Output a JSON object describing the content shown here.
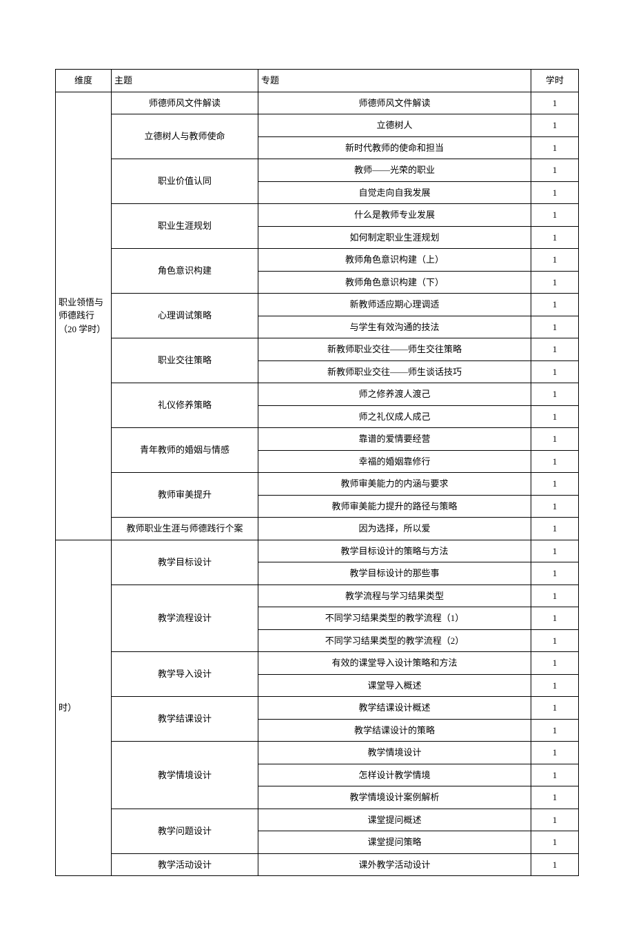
{
  "headers": {
    "dimension": "维度",
    "theme": "主题",
    "topic": "专题",
    "hours": "学时"
  },
  "sections": [
    {
      "dimension": "职业领悟与师德践行（20 学时）",
      "themes": [
        {
          "theme": "师德师风文件解读",
          "topics": [
            {
              "topic": "师德师风文件解读",
              "hours": "1"
            }
          ]
        },
        {
          "theme": "立德树人与教师使命",
          "topics": [
            {
              "topic": "立德树人",
              "hours": "1"
            },
            {
              "topic": "新时代教师的使命和担当",
              "hours": "1"
            }
          ]
        },
        {
          "theme": "职业价值认同",
          "topics": [
            {
              "topic": "教师――光荣的职业",
              "hours": "1"
            },
            {
              "topic": "自觉走向自我发展",
              "hours": "1"
            }
          ]
        },
        {
          "theme": "职业生涯规划",
          "topics": [
            {
              "topic": "什么是教师专业发展",
              "hours": "1"
            },
            {
              "topic": "如何制定职业生涯规划",
              "hours": "1"
            }
          ]
        },
        {
          "theme": "角色意识构建",
          "topics": [
            {
              "topic": "教师角色意识构建（上）",
              "hours": "1"
            },
            {
              "topic": "教师角色意识构建（下）",
              "hours": "1"
            }
          ]
        },
        {
          "theme": "心理调试策略",
          "topics": [
            {
              "topic": "新教师适应期心理调适",
              "hours": "1"
            },
            {
              "topic": "与学生有效沟通的技法",
              "hours": "1"
            }
          ]
        },
        {
          "theme": "职业交往策略",
          "topics": [
            {
              "topic": "新教师职业交往――师生交往策略",
              "hours": "1"
            },
            {
              "topic": "新教师职业交往——师生谈话技巧",
              "hours": "1"
            }
          ]
        },
        {
          "theme": "礼仪修养策略",
          "topics": [
            {
              "topic": "师之修养渡人渡己",
              "hours": "1"
            },
            {
              "topic": "师之礼仪成人成己",
              "hours": "1"
            }
          ]
        },
        {
          "theme": "青年教师的婚姻与情感",
          "topics": [
            {
              "topic": "靠谱的爱情要经营",
              "hours": "1"
            },
            {
              "topic": "幸福的婚姻靠修行",
              "hours": "1"
            }
          ]
        },
        {
          "theme": "教师审美提升",
          "topics": [
            {
              "topic": "教师审美能力的内涵与要求",
              "hours": "1"
            },
            {
              "topic": "教师审美能力提升的路径与策略",
              "hours": "1"
            }
          ]
        },
        {
          "theme": "教师职业生涯与师德践行个案",
          "topics": [
            {
              "topic": "因为选择，所以爱",
              "hours": "1"
            }
          ]
        }
      ],
      "rowcount": 20
    },
    {
      "dimension": "时）",
      "themes": [
        {
          "theme": "教学目标设计",
          "topics": [
            {
              "topic": "教学目标设计的策略与方法",
              "hours": "1"
            },
            {
              "topic": "教学目标设计的那些事",
              "hours": "1"
            }
          ]
        },
        {
          "theme": "教学流程设计",
          "topics": [
            {
              "topic": "教学流程与学习结果类型",
              "hours": "1"
            },
            {
              "topic": "不同学习结果类型的教学流程（1）",
              "hours": "1"
            },
            {
              "topic": "不同学习结果类型的教学流程（2）",
              "hours": "1"
            }
          ]
        },
        {
          "theme": "教学导入设计",
          "topics": [
            {
              "topic": "有效的课堂导入设计策略和方法",
              "hours": "1"
            },
            {
              "topic": "课堂导入概述",
              "hours": "1"
            }
          ]
        },
        {
          "theme": "教学结课设计",
          "topics": [
            {
              "topic": "教学结课设计概述",
              "hours": "1"
            },
            {
              "topic": "教学结课设计的策略",
              "hours": "1"
            }
          ]
        },
        {
          "theme": "教学情境设计",
          "topics": [
            {
              "topic": "教学情境设计",
              "hours": "1"
            },
            {
              "topic": "怎样设计教学情境",
              "hours": "1"
            },
            {
              "topic": "教学情境设计案例解析",
              "hours": "1"
            }
          ]
        },
        {
          "theme": "教学问题设计",
          "topics": [
            {
              "topic": "课堂提问概述",
              "hours": "1"
            },
            {
              "topic": "课堂提问策略",
              "hours": "1"
            }
          ]
        },
        {
          "theme": "教学活动设计",
          "topics": [
            {
              "topic": "课外教学活动设计",
              "hours": "1"
            }
          ]
        }
      ],
      "rowcount": 15
    }
  ]
}
